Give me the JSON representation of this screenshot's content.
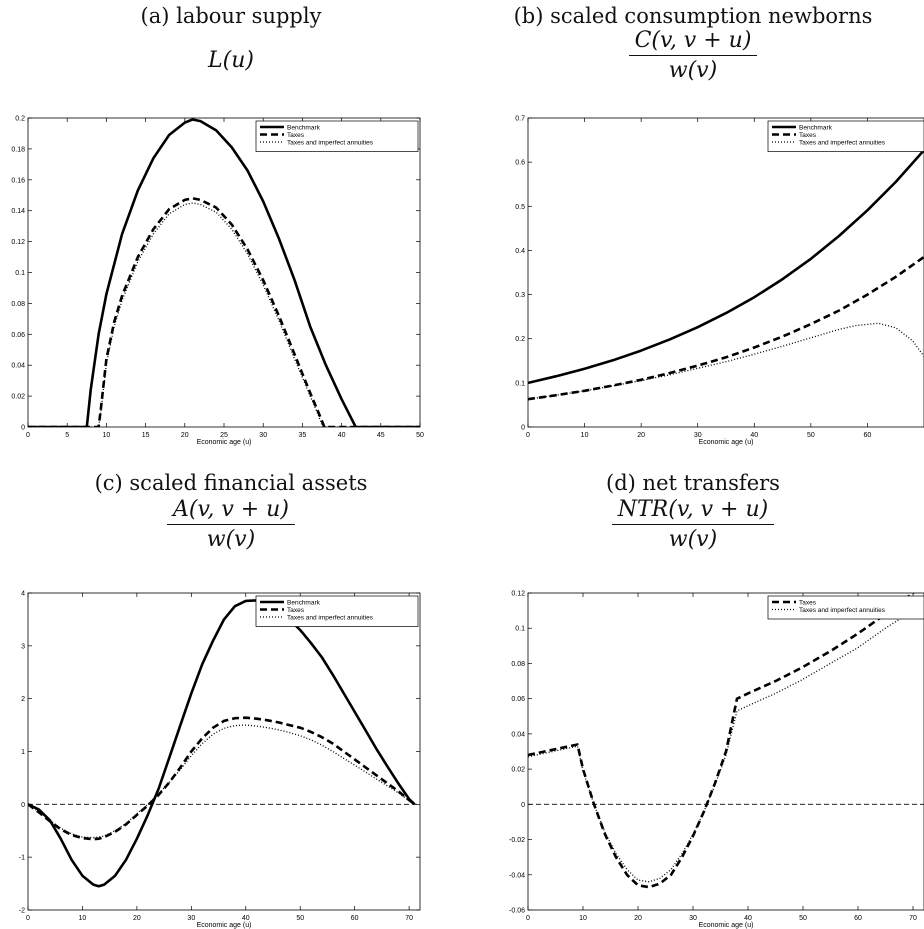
{
  "chart_data": [
    {
      "id": "a",
      "type": "line",
      "title": "(a) labour supply",
      "formula": "L(u)",
      "xlabel": "Economic age (u)",
      "ylabel": "",
      "xlim": [
        0,
        50
      ],
      "ylim": [
        0,
        0.2
      ],
      "xticks": [
        0,
        5,
        10,
        15,
        20,
        25,
        30,
        35,
        40,
        45,
        50
      ],
      "yticks": [
        0,
        0.02,
        0.04,
        0.06,
        0.08,
        0.1,
        0.12,
        0.14,
        0.16,
        0.18,
        0.2
      ],
      "zero_line": false,
      "legend": [
        "Benchmark",
        "Taxes",
        "Taxes and imperfect annuities"
      ],
      "series": [
        {
          "name": "Benchmark",
          "style": "solid",
          "x": [
            0,
            7.5,
            8,
            9,
            10,
            12,
            14,
            16,
            18,
            20,
            21,
            22,
            24,
            26,
            28,
            30,
            32,
            34,
            36,
            38,
            40,
            41,
            41.8,
            42,
            50
          ],
          "y": [
            0,
            0,
            0.024,
            0.06,
            0.086,
            0.125,
            0.153,
            0.174,
            0.189,
            0.197,
            0.199,
            0.198,
            0.192,
            0.181,
            0.166,
            0.146,
            0.122,
            0.095,
            0.065,
            0.04,
            0.018,
            0.008,
            0,
            0,
            0
          ]
        },
        {
          "name": "Taxes",
          "style": "dashed",
          "x": [
            0,
            9,
            9.3,
            10,
            11,
            12,
            14,
            16,
            18,
            20,
            21,
            22,
            24,
            26,
            28,
            30,
            32,
            34,
            36,
            37,
            37.8,
            38,
            50
          ],
          "y": [
            0,
            0,
            0.012,
            0.044,
            0.068,
            0.085,
            0.11,
            0.128,
            0.141,
            0.147,
            0.148,
            0.147,
            0.142,
            0.131,
            0.115,
            0.095,
            0.072,
            0.047,
            0.022,
            0.01,
            0,
            0,
            0
          ]
        },
        {
          "name": "Taxes and imperfect annuities",
          "style": "dotted",
          "x": [
            0,
            9,
            9.3,
            10,
            11,
            12,
            14,
            16,
            18,
            20,
            21,
            22,
            24,
            26,
            28,
            30,
            32,
            34,
            36,
            37,
            37.6,
            38,
            50
          ],
          "y": [
            0,
            0,
            0.01,
            0.041,
            0.065,
            0.082,
            0.107,
            0.125,
            0.138,
            0.144,
            0.145,
            0.144,
            0.139,
            0.128,
            0.112,
            0.092,
            0.069,
            0.044,
            0.02,
            0.008,
            0,
            0,
            0
          ]
        }
      ]
    },
    {
      "id": "b",
      "type": "line",
      "title": "(b) scaled consumption newborns",
      "formula_num": "C(v, v + u)",
      "formula_den": "w(v)",
      "xlabel": "Economic age (u)",
      "ylabel": "",
      "xlim": [
        0,
        70
      ],
      "ylim": [
        0,
        0.7
      ],
      "xticks": [
        0,
        10,
        20,
        30,
        40,
        50,
        60
      ],
      "yticks": [
        0,
        0.1,
        0.2,
        0.3,
        0.4,
        0.5,
        0.6,
        0.7
      ],
      "zero_line": false,
      "legend": [
        "Benchmark",
        "Taxes",
        "Taxes and imperfect annuities"
      ],
      "series": [
        {
          "name": "Benchmark",
          "style": "solid",
          "x": [
            0,
            5,
            10,
            15,
            20,
            25,
            30,
            35,
            40,
            45,
            50,
            55,
            60,
            65,
            70
          ],
          "y": [
            0.1,
            0.115,
            0.132,
            0.151,
            0.173,
            0.198,
            0.226,
            0.258,
            0.294,
            0.335,
            0.381,
            0.433,
            0.491,
            0.555,
            0.627
          ]
        },
        {
          "name": "Taxes",
          "style": "dashed",
          "x": [
            0,
            5,
            10,
            15,
            20,
            25,
            30,
            35,
            40,
            45,
            50,
            55,
            60,
            65,
            70
          ],
          "y": [
            0.063,
            0.072,
            0.082,
            0.094,
            0.107,
            0.122,
            0.139,
            0.158,
            0.18,
            0.205,
            0.233,
            0.264,
            0.3,
            0.34,
            0.385
          ]
        },
        {
          "name": "Taxes and imperfect annuities",
          "style": "dotted",
          "x": [
            0,
            5,
            10,
            15,
            20,
            25,
            30,
            35,
            40,
            45,
            50,
            55,
            58,
            62,
            65,
            68,
            70
          ],
          "y": [
            0.063,
            0.072,
            0.082,
            0.093,
            0.105,
            0.118,
            0.133,
            0.148,
            0.165,
            0.183,
            0.202,
            0.221,
            0.23,
            0.235,
            0.225,
            0.195,
            0.16
          ]
        }
      ]
    },
    {
      "id": "c",
      "type": "line",
      "title": "(c) scaled financial assets",
      "formula_num": "A(v, v + u)",
      "formula_den": "w(v)",
      "xlabel": "Economic age (u)",
      "ylabel": "",
      "xlim": [
        0,
        72
      ],
      "ylim": [
        -2,
        4
      ],
      "xticks": [
        0,
        10,
        20,
        30,
        40,
        50,
        60,
        70
      ],
      "yticks": [
        -2,
        -1,
        0,
        1,
        2,
        3,
        4
      ],
      "zero_line": true,
      "legend": [
        "Benchmark",
        "Taxes",
        "Taxes and imperfect annuities"
      ],
      "series": [
        {
          "name": "Benchmark",
          "style": "solid",
          "x": [
            0,
            2,
            4,
            6,
            8,
            10,
            12,
            13,
            14,
            16,
            18,
            20,
            22,
            24,
            26,
            28,
            30,
            32,
            34,
            36,
            38,
            40,
            42,
            44,
            46,
            48,
            50,
            52,
            54,
            56,
            58,
            60,
            62,
            64,
            66,
            68,
            70,
            71
          ],
          "y": [
            0,
            -0.1,
            -0.3,
            -0.65,
            -1.05,
            -1.35,
            -1.52,
            -1.55,
            -1.52,
            -1.35,
            -1.05,
            -0.65,
            -0.2,
            0.3,
            0.9,
            1.5,
            2.1,
            2.65,
            3.1,
            3.5,
            3.75,
            3.85,
            3.86,
            3.8,
            3.67,
            3.5,
            3.3,
            3.05,
            2.78,
            2.45,
            2.1,
            1.75,
            1.4,
            1.05,
            0.72,
            0.4,
            0.1,
            0
          ]
        },
        {
          "name": "Taxes",
          "style": "dashed",
          "x": [
            0,
            2,
            4,
            6,
            8,
            10,
            12,
            13,
            14,
            16,
            18,
            20,
            22,
            24,
            26,
            28,
            30,
            32,
            34,
            36,
            38,
            40,
            42,
            44,
            46,
            48,
            50,
            52,
            54,
            56,
            58,
            60,
            62,
            64,
            66,
            68,
            70,
            71
          ],
          "y": [
            0,
            -0.15,
            -0.32,
            -0.47,
            -0.58,
            -0.64,
            -0.66,
            -0.65,
            -0.62,
            -0.52,
            -0.38,
            -0.2,
            -0.02,
            0.18,
            0.42,
            0.7,
            1.0,
            1.25,
            1.45,
            1.58,
            1.63,
            1.64,
            1.62,
            1.59,
            1.55,
            1.5,
            1.45,
            1.37,
            1.27,
            1.15,
            1.0,
            0.85,
            0.7,
            0.55,
            0.4,
            0.25,
            0.08,
            0
          ]
        },
        {
          "name": "Taxes and imperfect annuities",
          "style": "dotted",
          "x": [
            0,
            2,
            4,
            6,
            8,
            10,
            12,
            13,
            14,
            16,
            18,
            20,
            22,
            24,
            26,
            28,
            30,
            32,
            34,
            36,
            38,
            40,
            42,
            44,
            46,
            48,
            50,
            52,
            54,
            56,
            58,
            60,
            62,
            64,
            66,
            68,
            70,
            71
          ],
          "y": [
            0,
            -0.14,
            -0.3,
            -0.45,
            -0.56,
            -0.62,
            -0.63,
            -0.62,
            -0.6,
            -0.5,
            -0.36,
            -0.18,
            0,
            0.2,
            0.42,
            0.66,
            0.92,
            1.15,
            1.33,
            1.44,
            1.49,
            1.5,
            1.48,
            1.45,
            1.41,
            1.36,
            1.3,
            1.22,
            1.12,
            1.0,
            0.87,
            0.74,
            0.61,
            0.48,
            0.35,
            0.22,
            0.07,
            0
          ]
        }
      ]
    },
    {
      "id": "d",
      "type": "line",
      "title": "(d) net transfers",
      "formula_num": "NTR(v, v + u)",
      "formula_den": "w(v)",
      "xlabel": "Economic age (u)",
      "ylabel": "",
      "xlim": [
        0,
        72
      ],
      "ylim": [
        -0.06,
        0.12
      ],
      "xticks": [
        0,
        10,
        20,
        30,
        40,
        50,
        60,
        70
      ],
      "yticks": [
        -0.06,
        -0.04,
        -0.02,
        0,
        0.02,
        0.04,
        0.06,
        0.08,
        0.1,
        0.12
      ],
      "zero_line": true,
      "legend": [
        "Taxes",
        "Taxes and imperfect annuities"
      ],
      "series": [
        {
          "name": "Taxes",
          "style": "dashed",
          "x": [
            0,
            3,
            6,
            9,
            10,
            12,
            14,
            16,
            18,
            20,
            22,
            24,
            26,
            28,
            30,
            32,
            34,
            36,
            38,
            40,
            45,
            50,
            55,
            60,
            65,
            70,
            72
          ],
          "y": [
            0.028,
            0.03,
            0.032,
            0.034,
            0.02,
            0.0,
            -0.017,
            -0.03,
            -0.04,
            -0.046,
            -0.047,
            -0.045,
            -0.04,
            -0.03,
            -0.018,
            -0.004,
            0.012,
            0.03,
            0.06,
            0.063,
            0.07,
            0.078,
            0.087,
            0.097,
            0.108,
            0.12,
            0.125
          ]
        },
        {
          "name": "Taxes and imperfect annuities",
          "style": "dotted",
          "x": [
            0,
            3,
            6,
            9,
            10,
            12,
            14,
            16,
            18,
            20,
            22,
            24,
            26,
            28,
            30,
            32,
            34,
            36,
            38,
            40,
            45,
            50,
            55,
            60,
            65,
            70,
            72
          ],
          "y": [
            0.027,
            0.029,
            0.031,
            0.033,
            0.019,
            0.0,
            -0.016,
            -0.028,
            -0.037,
            -0.043,
            -0.044,
            -0.042,
            -0.037,
            -0.028,
            -0.017,
            -0.004,
            0.011,
            0.028,
            0.053,
            0.056,
            0.063,
            0.071,
            0.08,
            0.089,
            0.1,
            0.11,
            0.115
          ]
        }
      ]
    }
  ]
}
